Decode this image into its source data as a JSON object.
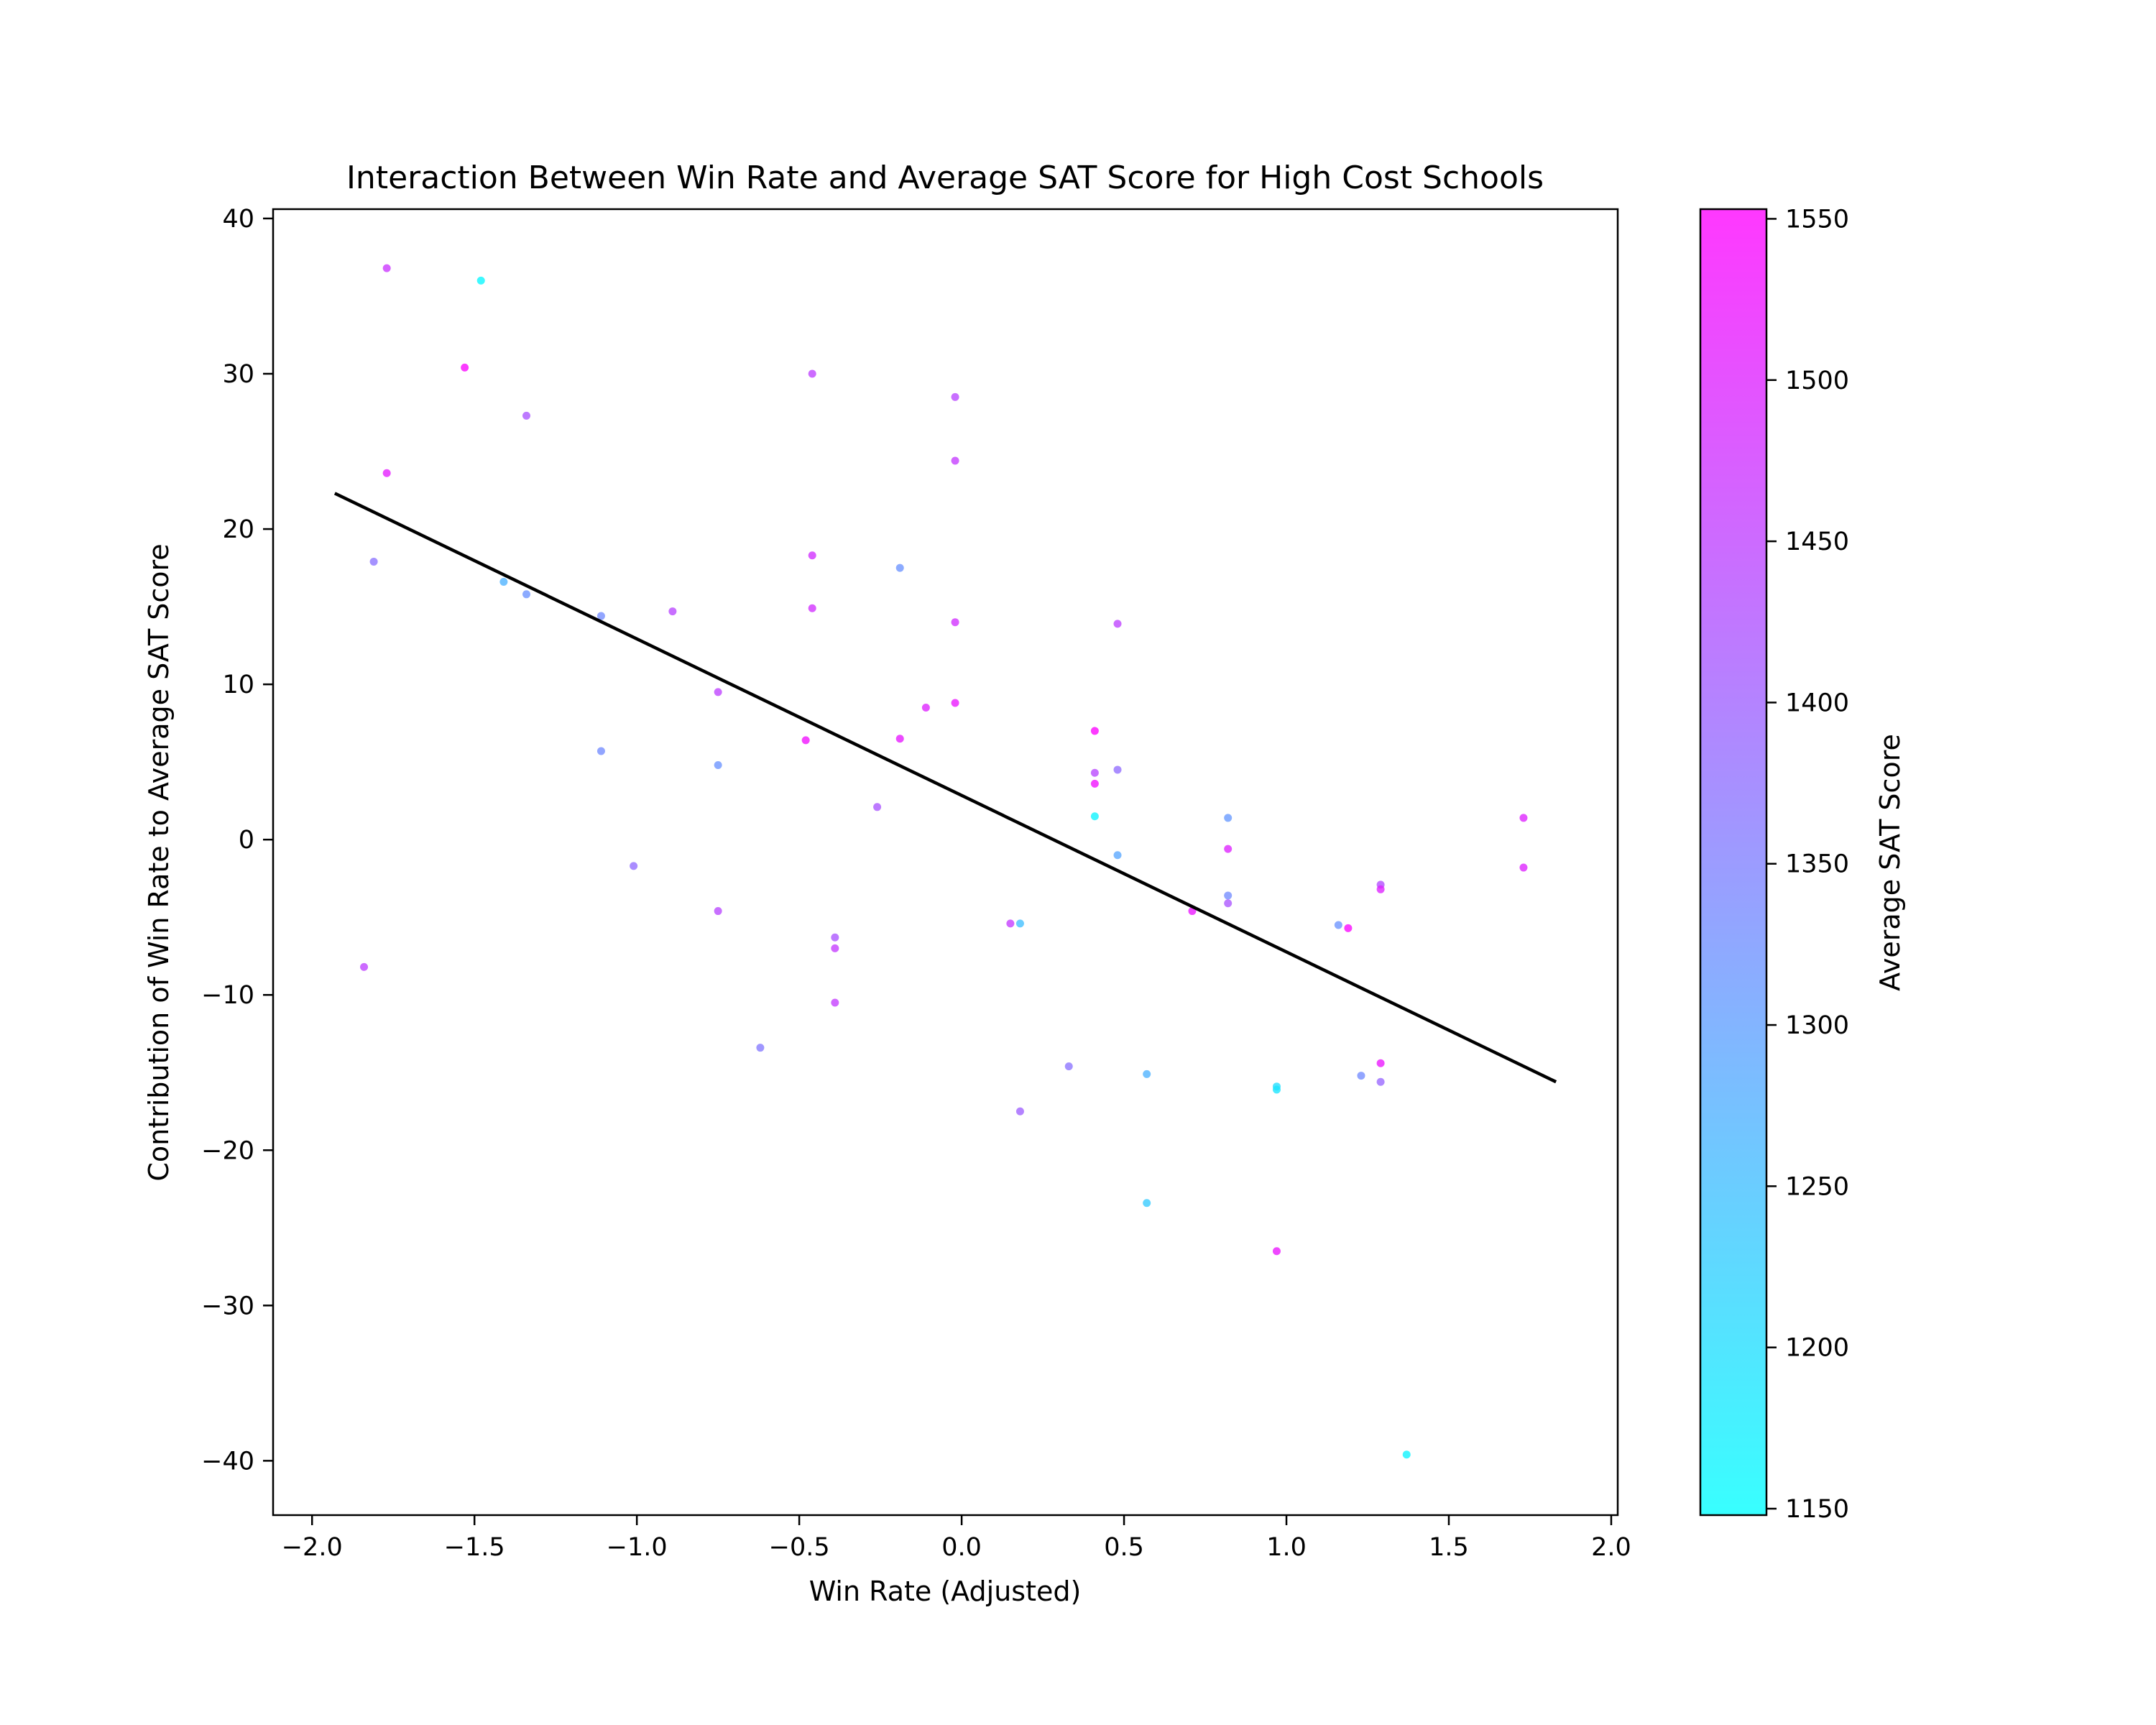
{
  "chart_data": {
    "type": "scatter",
    "title": "Interaction Between Win Rate and Average SAT Score for High Cost Schools",
    "xlabel": "Win Rate (Adjusted)",
    "ylabel": "Contribution of Win Rate to Average SAT Score",
    "xlim": [
      -2.12,
      2.02
    ],
    "ylim": [
      -43.5,
      40.6
    ],
    "xticks": [
      -2.0,
      -1.5,
      -1.0,
      -0.5,
      0.0,
      0.5,
      1.0,
      1.5,
      2.0
    ],
    "xtick_labels": [
      "−2.0",
      "−1.5",
      "−1.0",
      "−0.5",
      "0.0",
      "0.5",
      "1.0",
      "1.5",
      "2.0"
    ],
    "yticks": [
      -40,
      -30,
      -20,
      -10,
      0,
      10,
      20,
      30,
      40
    ],
    "ytick_labels": [
      "−40",
      "−30",
      "−20",
      "−10",
      "0",
      "10",
      "20",
      "30",
      "40"
    ],
    "grid": false,
    "colorbar": {
      "label": "Average SAT Score",
      "min": 1148,
      "max": 1553,
      "ticks": [
        1150,
        1200,
        1250,
        1300,
        1350,
        1400,
        1450,
        1500,
        1550
      ],
      "colormap": "cool",
      "start_color": "#00ffff",
      "end_color": "#ff00ff"
    },
    "trend_line": {
      "x": [
        -1.93,
        1.83
      ],
      "y": [
        22.3,
        -15.6
      ],
      "color": "#000000"
    },
    "points": [
      {
        "x": -1.77,
        "y": 36.8,
        "sat": 1470
      },
      {
        "x": -1.48,
        "y": 36.0,
        "sat": 1160
      },
      {
        "x": -1.53,
        "y": 30.4,
        "sat": 1545
      },
      {
        "x": -1.34,
        "y": 27.3,
        "sat": 1420
      },
      {
        "x": -1.77,
        "y": 23.6,
        "sat": 1510
      },
      {
        "x": -1.81,
        "y": 17.9,
        "sat": 1370
      },
      {
        "x": -1.41,
        "y": 16.6,
        "sat": 1270
      },
      {
        "x": -1.34,
        "y": 15.8,
        "sat": 1320
      },
      {
        "x": -1.11,
        "y": 14.4,
        "sat": 1330
      },
      {
        "x": -0.89,
        "y": 14.7,
        "sat": 1440
      },
      {
        "x": -0.75,
        "y": 9.5,
        "sat": 1450
      },
      {
        "x": -1.11,
        "y": 5.7,
        "sat": 1330
      },
      {
        "x": -0.75,
        "y": 4.8,
        "sat": 1320
      },
      {
        "x": -1.84,
        "y": -8.2,
        "sat": 1450
      },
      {
        "x": -1.01,
        "y": -1.7,
        "sat": 1380
      },
      {
        "x": -0.75,
        "y": -4.6,
        "sat": 1440
      },
      {
        "x": -0.46,
        "y": 30.0,
        "sat": 1450
      },
      {
        "x": -0.46,
        "y": 18.3,
        "sat": 1480
      },
      {
        "x": -0.46,
        "y": 14.9,
        "sat": 1480
      },
      {
        "x": -0.48,
        "y": 6.4,
        "sat": 1530
      },
      {
        "x": -0.19,
        "y": 17.5,
        "sat": 1320
      },
      {
        "x": -0.19,
        "y": 6.5,
        "sat": 1515
      },
      {
        "x": -0.11,
        "y": 8.5,
        "sat": 1500
      },
      {
        "x": -0.26,
        "y": 2.1,
        "sat": 1420
      },
      {
        "x": -0.39,
        "y": -6.3,
        "sat": 1420
      },
      {
        "x": -0.39,
        "y": -7.0,
        "sat": 1460
      },
      {
        "x": -0.39,
        "y": -10.5,
        "sat": 1460
      },
      {
        "x": -0.62,
        "y": -13.4,
        "sat": 1360
      },
      {
        "x": -0.02,
        "y": 28.5,
        "sat": 1440
      },
      {
        "x": -0.02,
        "y": 24.4,
        "sat": 1460
      },
      {
        "x": -0.02,
        "y": 14.0,
        "sat": 1480
      },
      {
        "x": -0.02,
        "y": 8.8,
        "sat": 1520
      },
      {
        "x": 0.15,
        "y": -5.4,
        "sat": 1460
      },
      {
        "x": 0.18,
        "y": -5.4,
        "sat": 1250
      },
      {
        "x": 0.18,
        "y": -17.5,
        "sat": 1400
      },
      {
        "x": 0.33,
        "y": -14.6,
        "sat": 1370
      },
      {
        "x": 0.41,
        "y": 7.0,
        "sat": 1550
      },
      {
        "x": 0.41,
        "y": 4.3,
        "sat": 1440
      },
      {
        "x": 0.41,
        "y": 3.6,
        "sat": 1530
      },
      {
        "x": 0.41,
        "y": 1.5,
        "sat": 1165
      },
      {
        "x": 0.48,
        "y": 13.9,
        "sat": 1450
      },
      {
        "x": 0.48,
        "y": 4.5,
        "sat": 1380
      },
      {
        "x": 0.48,
        "y": -1.0,
        "sat": 1290
      },
      {
        "x": 0.57,
        "y": -15.1,
        "sat": 1270
      },
      {
        "x": 0.57,
        "y": -23.4,
        "sat": 1230
      },
      {
        "x": 0.71,
        "y": -4.6,
        "sat": 1520
      },
      {
        "x": 0.82,
        "y": 1.4,
        "sat": 1310
      },
      {
        "x": 0.82,
        "y": -0.6,
        "sat": 1500
      },
      {
        "x": 0.82,
        "y": -3.6,
        "sat": 1330
      },
      {
        "x": 0.82,
        "y": -4.1,
        "sat": 1420
      },
      {
        "x": 0.97,
        "y": -15.9,
        "sat": 1200
      },
      {
        "x": 0.97,
        "y": -16.1,
        "sat": 1190
      },
      {
        "x": 0.97,
        "y": -26.5,
        "sat": 1520
      },
      {
        "x": 1.16,
        "y": -5.5,
        "sat": 1320
      },
      {
        "x": 1.19,
        "y": -5.7,
        "sat": 1545
      },
      {
        "x": 1.23,
        "y": -15.2,
        "sat": 1330
      },
      {
        "x": 1.29,
        "y": -2.9,
        "sat": 1430
      },
      {
        "x": 1.29,
        "y": -3.2,
        "sat": 1500
      },
      {
        "x": 1.29,
        "y": -14.4,
        "sat": 1520
      },
      {
        "x": 1.29,
        "y": -15.6,
        "sat": 1390
      },
      {
        "x": 1.37,
        "y": -39.6,
        "sat": 1165
      },
      {
        "x": 1.73,
        "y": 1.4,
        "sat": 1500
      },
      {
        "x": 1.73,
        "y": -1.8,
        "sat": 1500
      }
    ]
  }
}
